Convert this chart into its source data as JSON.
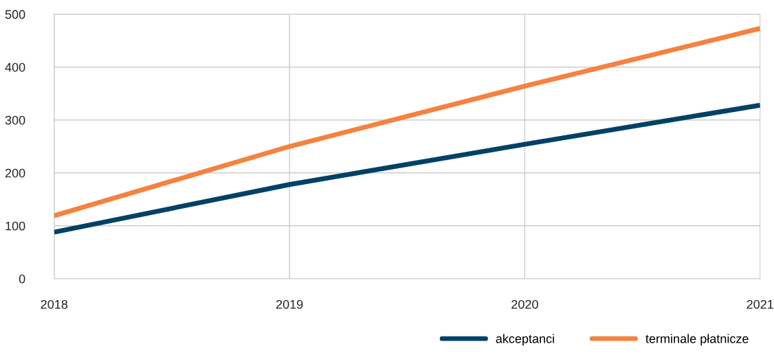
{
  "chart_data": {
    "type": "line",
    "x": [
      2018,
      2019,
      2020,
      2021
    ],
    "series": [
      {
        "name": "akceptanci",
        "color": "#004166",
        "values": [
          88,
          178,
          254,
          328
        ]
      },
      {
        "name": "terminale płatnicze",
        "color": "#f5823f",
        "values": [
          119,
          250,
          364,
          473
        ]
      }
    ],
    "xlim": [
      2018,
      2021
    ],
    "xticks": [
      2018,
      2019,
      2020,
      2021
    ],
    "ylim": [
      0,
      500
    ],
    "yticks": [
      0,
      100,
      200,
      300,
      400,
      500
    ],
    "grid": true,
    "legend": "bottom right",
    "marker": "none",
    "line_style": "solid"
  }
}
